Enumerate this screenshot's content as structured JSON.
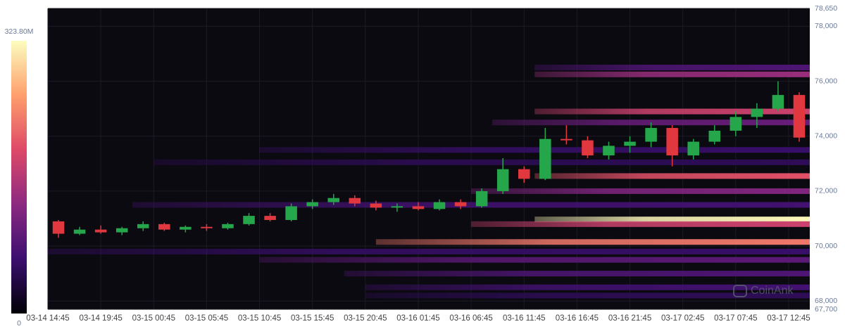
{
  "chart_data": {
    "type": "candlestick-heatmap",
    "watermark": "CoinAnk",
    "xlim": [
      0,
      72
    ],
    "xticks": [
      {
        "value": 0,
        "label": "03-14 14:45"
      },
      {
        "value": 5,
        "label": "03-14 19:45"
      },
      {
        "value": 10,
        "label": "03-15 00:45"
      },
      {
        "value": 15,
        "label": "03-15 05:45"
      },
      {
        "value": 20,
        "label": "03-15 10:45"
      },
      {
        "value": 25,
        "label": "03-15 15:45"
      },
      {
        "value": 30,
        "label": "03-15 20:45"
      },
      {
        "value": 35,
        "label": "03-16 01:45"
      },
      {
        "value": 40,
        "label": "03-16 06:45"
      },
      {
        "value": 45,
        "label": "03-16 11:45"
      },
      {
        "value": 50,
        "label": "03-16 16:45"
      },
      {
        "value": 55,
        "label": "03-16 21:45"
      },
      {
        "value": 60,
        "label": "03-17 02:45"
      },
      {
        "value": 65,
        "label": "03-17 07:45"
      },
      {
        "value": 70,
        "label": "03-17 12:45"
      }
    ],
    "ylim": [
      67700,
      78650
    ],
    "yticks": [
      {
        "value": 67700,
        "label": "67,700"
      },
      {
        "value": 68000,
        "label": "68,000"
      },
      {
        "value": 70000,
        "label": "70,000"
      },
      {
        "value": 72000,
        "label": "72,000"
      },
      {
        "value": 74000,
        "label": "74,000"
      },
      {
        "value": 76000,
        "label": "76,000"
      },
      {
        "value": 78000,
        "label": "78,000"
      },
      {
        "value": 78650,
        "label": "78,650"
      }
    ],
    "grid": true,
    "up_color": "#26a64a",
    "down_color": "#e0383e",
    "x": [
      0,
      2,
      4,
      6,
      8,
      10,
      12,
      14,
      16,
      18,
      20,
      22,
      24,
      26,
      28,
      30,
      32,
      34,
      36,
      38,
      40,
      42,
      44,
      46,
      48,
      50,
      52,
      54,
      56,
      58,
      60,
      62,
      64,
      66,
      68,
      70
    ],
    "open": [
      70900,
      70450,
      70600,
      70500,
      70650,
      70800,
      70600,
      70700,
      70650,
      70800,
      71100,
      70950,
      71450,
      71600,
      71750,
      71550,
      71400,
      71450,
      71350,
      71600,
      71450,
      72000,
      72800,
      72450,
      73900,
      73850,
      73300,
      73650,
      73800,
      74300,
      73300,
      73800,
      74200,
      74700,
      75000,
      75500
    ],
    "high": [
      70950,
      70700,
      70750,
      70700,
      70900,
      70850,
      70750,
      70800,
      70850,
      71200,
      71200,
      71550,
      71700,
      71900,
      71850,
      71650,
      71550,
      71600,
      71700,
      71700,
      72100,
      73200,
      72900,
      74300,
      74400,
      74000,
      73800,
      74000,
      74500,
      74400,
      73900,
      74400,
      74900,
      75200,
      76000,
      75600
    ],
    "low": [
      70300,
      70400,
      70450,
      70400,
      70550,
      70550,
      70500,
      70550,
      70600,
      70750,
      70900,
      70900,
      71350,
      71500,
      71450,
      71300,
      71250,
      71300,
      71300,
      71350,
      71400,
      71900,
      72300,
      72400,
      73700,
      73200,
      73150,
      73400,
      73600,
      72900,
      73150,
      73700,
      74000,
      74300,
      74900,
      73800
    ],
    "close": [
      70450,
      70600,
      70500,
      70650,
      70800,
      70600,
      70700,
      70650,
      70800,
      71100,
      70950,
      71450,
      71600,
      71750,
      71550,
      71400,
      71450,
      71350,
      71600,
      71450,
      72000,
      72800,
      72450,
      73900,
      73850,
      73300,
      73650,
      73800,
      74300,
      73300,
      73800,
      74200,
      74700,
      75000,
      75500,
      73950
    ],
    "colorbar_ticks": [
      {
        "value": 323.8,
        "label": "323.80M"
      },
      0
    ],
    "colorscale": [
      "#000004",
      "#3b0f70",
      "#8c2981",
      "#de4968",
      "#fe9f6d",
      "#fcfdbf"
    ],
    "heatmap": {
      "levels": [
        76500,
        76250,
        74900,
        74500,
        73500,
        73050,
        72550,
        72000,
        71500,
        70970,
        70800,
        70150,
        69800,
        69500,
        69000,
        68500,
        68200
      ],
      "start": [
        46,
        46,
        46,
        42,
        20,
        10,
        46,
        40,
        8,
        46,
        40,
        31,
        0,
        20,
        28,
        30,
        30
      ],
      "values": [
        80,
        140,
        180,
        100,
        60,
        50,
        200,
        120,
        70,
        320,
        180,
        230,
        60,
        90,
        80,
        70,
        50
      ]
    }
  }
}
